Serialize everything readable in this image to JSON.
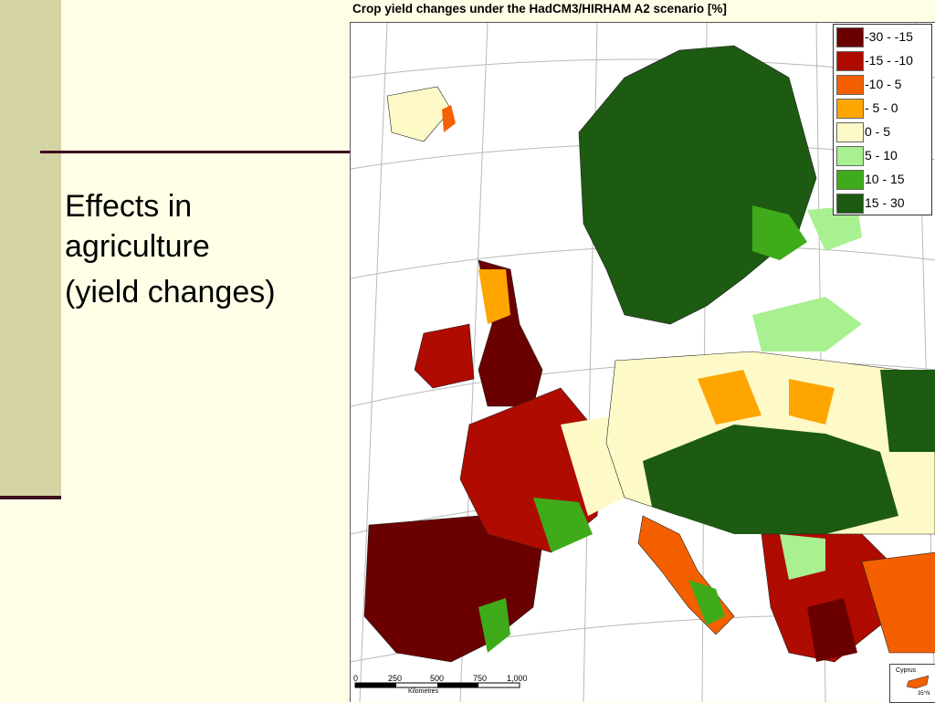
{
  "slide": {
    "title_lines": [
      "Effects in",
      "agriculture",
      "(yield changes)"
    ]
  },
  "map": {
    "title": "Crop yield changes under the HadCM3/HIRHAM A2 scenario [%]",
    "legend": [
      {
        "label": "-30 - -15",
        "color": "#6b0000"
      },
      {
        "label": "-15 - -10",
        "color": "#b00b00"
      },
      {
        "label": "-10 -  5",
        "color": "#f45f00"
      },
      {
        "label": "- 5 -   0",
        "color": "#ffa500"
      },
      {
        "label": "0 -   5",
        "color": "#fdfac8"
      },
      {
        "label": "5 -  10",
        "color": "#a8f090"
      },
      {
        "label": "10 -  15",
        "color": "#3fab1a"
      },
      {
        "label": "15 -  30",
        "color": "#1d5a12"
      }
    ],
    "scale_ticks": [
      "0",
      "250",
      "500",
      "750",
      "1,000"
    ],
    "scale_unit": "Kilometres",
    "inset_label": "Cyprus",
    "inset_lat": "35°N"
  }
}
